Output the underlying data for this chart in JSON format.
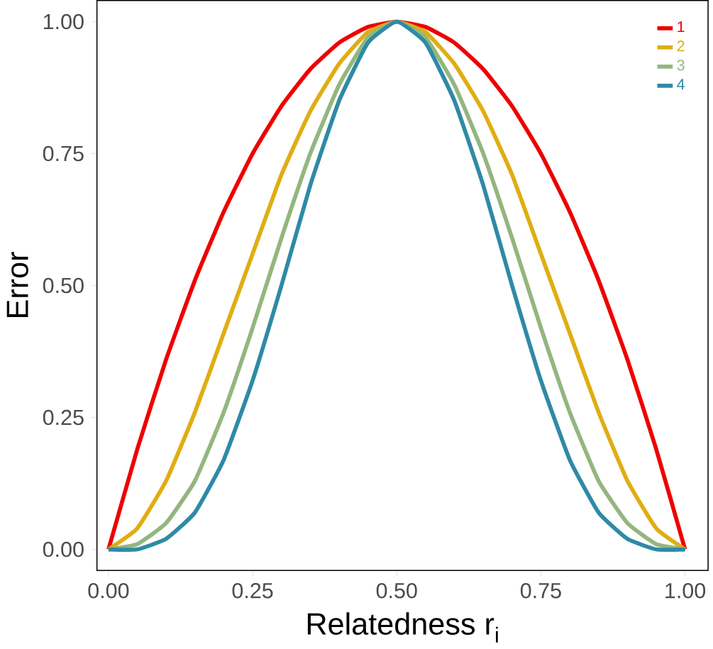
{
  "chart_data": {
    "type": "line",
    "xlabel": "Relatedness r$_{i}$",
    "ylabel": "Error",
    "x": [
      0,
      0.05,
      0.1,
      0.15,
      0.2,
      0.25,
      0.3,
      0.35,
      0.4,
      0.45,
      0.5,
      0.55,
      0.6,
      0.65,
      0.7,
      0.75,
      0.8,
      0.85,
      0.9,
      0.95,
      1
    ],
    "series": [
      {
        "name": "1",
        "color": "#ee0000",
        "values": [
          0,
          0.19,
          0.36,
          0.51,
          0.64,
          0.75,
          0.84,
          0.91,
          0.96,
          0.99,
          1,
          0.99,
          0.96,
          0.91,
          0.84,
          0.75,
          0.64,
          0.51,
          0.36,
          0.19,
          0
        ]
      },
      {
        "name": "2",
        "color": "#e0ad12",
        "values": [
          0,
          0.04,
          0.13,
          0.26,
          0.41,
          0.56,
          0.71,
          0.83,
          0.92,
          0.98,
          1,
          0.98,
          0.92,
          0.83,
          0.71,
          0.56,
          0.41,
          0.26,
          0.13,
          0.04,
          0
        ]
      },
      {
        "name": "3",
        "color": "#93b67f",
        "values": [
          0,
          0.01,
          0.05,
          0.13,
          0.26,
          0.42,
          0.59,
          0.75,
          0.88,
          0.97,
          1,
          0.97,
          0.88,
          0.75,
          0.59,
          0.42,
          0.26,
          0.13,
          0.05,
          0.01,
          0
        ]
      },
      {
        "name": "4",
        "color": "#2f8aa5",
        "values": [
          0,
          0,
          0.02,
          0.07,
          0.17,
          0.32,
          0.5,
          0.69,
          0.85,
          0.96,
          1,
          0.96,
          0.85,
          0.69,
          0.5,
          0.32,
          0.17,
          0.07,
          0.02,
          0,
          0
        ]
      }
    ],
    "xlim": [
      -0.02,
      1.04
    ],
    "ylim": [
      -0.04,
      1.04
    ],
    "xticks": [
      {
        "value": 0,
        "label": "0.00"
      },
      {
        "value": 0.25,
        "label": "0.25"
      },
      {
        "value": 0.5,
        "label": "0.50"
      },
      {
        "value": 0.75,
        "label": "0.75"
      },
      {
        "value": 1,
        "label": "1.00"
      }
    ],
    "yticks": [
      {
        "value": 0,
        "label": "0.00"
      },
      {
        "value": 0.25,
        "label": "0.25"
      },
      {
        "value": 0.5,
        "label": "0.50"
      },
      {
        "value": 0.75,
        "label": "0.75"
      },
      {
        "value": 1,
        "label": "1.00"
      }
    ],
    "grid": false,
    "legend": "top right",
    "line_style": "solid",
    "marker": "none"
  }
}
